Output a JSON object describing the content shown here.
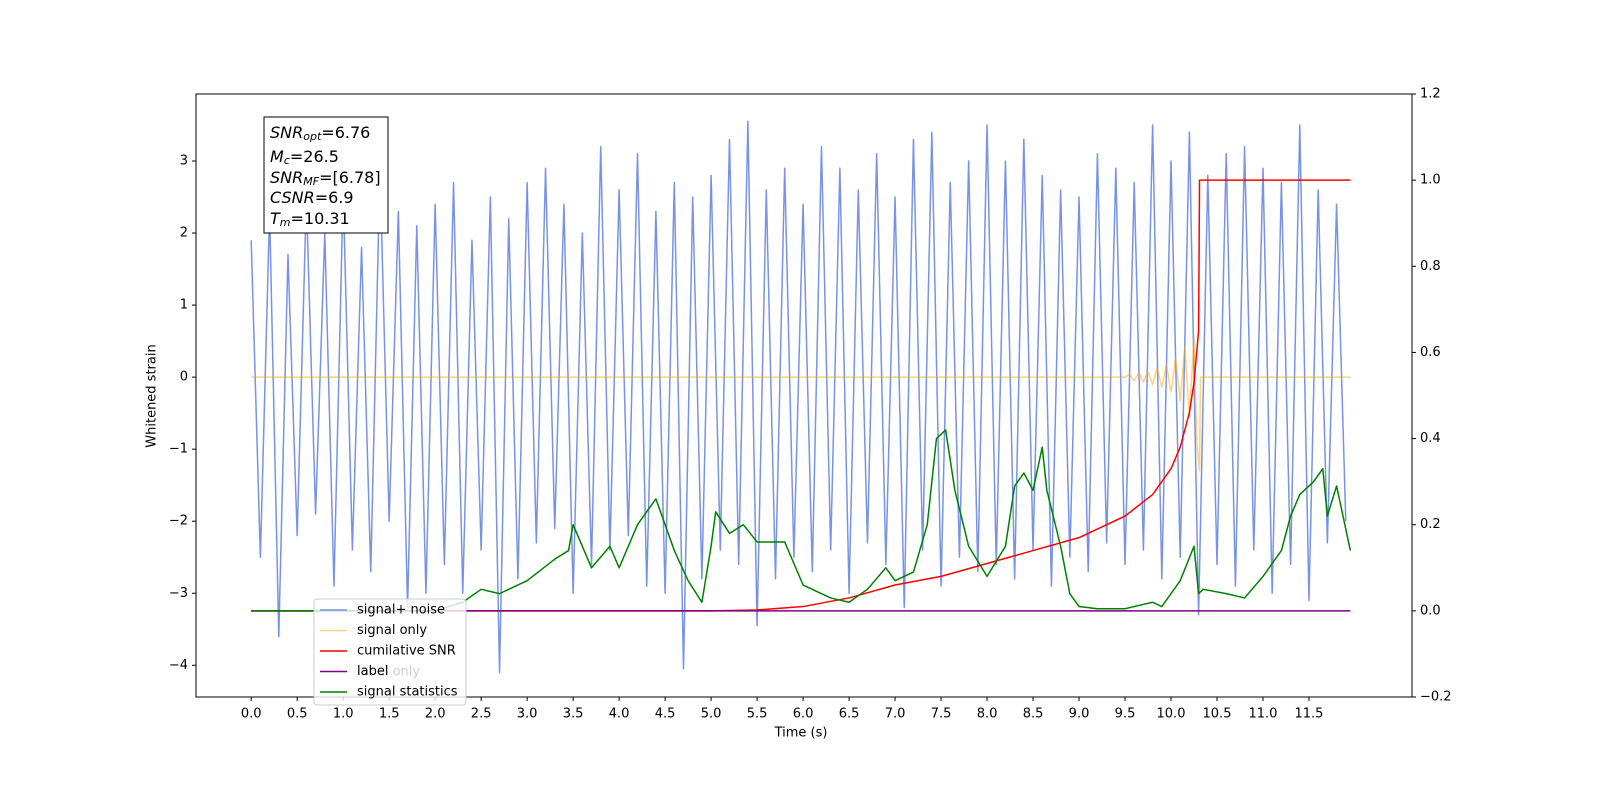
{
  "chart_data": {
    "type": "line",
    "xlabel": "Time (s)",
    "ylabel": "Whitened strain",
    "xlim": [
      -0.6,
      12.62
    ],
    "ylim": [
      -4.44,
      3.93
    ],
    "y2lim": [
      -0.2,
      1.2
    ],
    "xticks": [
      {
        "value": 0,
        "label": "0.0"
      },
      0.5,
      {
        "value": 1,
        "label": "1.0"
      },
      1.5,
      {
        "value": 2,
        "label": "2.0"
      },
      2.5,
      {
        "value": 3,
        "label": "3.0"
      },
      3.5,
      {
        "value": 4,
        "label": "4.0"
      },
      4.5,
      {
        "value": 5,
        "label": "5.0"
      },
      5.5,
      {
        "value": 6,
        "label": "6.0"
      },
      6.5,
      {
        "value": 7,
        "label": "7.0"
      },
      7.5,
      {
        "value": 8,
        "label": "8.0"
      },
      8.5,
      {
        "value": 9,
        "label": "9.0"
      },
      9.5,
      {
        "value": 10,
        "label": "10.0"
      },
      10.5,
      {
        "value": 11,
        "label": "11.0"
      },
      11.5
    ],
    "yticks": [
      {
        "value": -4,
        "label": "−4"
      },
      {
        "value": -3,
        "label": "−3"
      },
      {
        "value": -2,
        "label": "−2"
      },
      {
        "value": -1,
        "label": "−1"
      },
      0,
      1,
      2,
      3
    ],
    "y2ticks": [
      {
        "value": -0.2,
        "label": "−0.2"
      },
      {
        "value": 0,
        "label": "0.0"
      },
      0.2,
      0.4,
      0.6,
      0.8,
      {
        "value": 1,
        "label": "1.0"
      },
      1.2
    ],
    "legend": "lower left",
    "textbox": [
      {
        "text": "SNR",
        "sub": "opt",
        "rest": "=6.76"
      },
      {
        "text": "M",
        "sub": "c",
        "rest": "=26.5"
      },
      {
        "text": "SNR",
        "sub": "MF",
        "rest": "=[6.78]"
      },
      {
        "text": "CSNR",
        "rest": "=6.9"
      },
      {
        "text": "T",
        "sub": "m",
        "rest": "=10.31"
      }
    ],
    "annotation": "label only",
    "series": [
      {
        "name": "signal+ noise",
        "color": "#7893e6",
        "opacity": 1,
        "axis": "y",
        "x": [
          0,
          0.1,
          0.2,
          0.3,
          0.4,
          0.5,
          0.6,
          0.7,
          0.8,
          0.9,
          1,
          1.1,
          1.2,
          1.3,
          1.4,
          1.5,
          1.6,
          1.7,
          1.8,
          1.9,
          2,
          2.1,
          2.2,
          2.3,
          2.4,
          2.5,
          2.6,
          2.7,
          2.8,
          2.9,
          3,
          3.1,
          3.2,
          3.3,
          3.4,
          3.5,
          3.6,
          3.7,
          3.8,
          3.9,
          4,
          4.1,
          4.2,
          4.3,
          4.4,
          4.5,
          4.6,
          4.7,
          4.8,
          4.9,
          5,
          5.1,
          5.2,
          5.3,
          5.4,
          5.5,
          5.6,
          5.7,
          5.8,
          5.9,
          6,
          6.1,
          6.2,
          6.3,
          6.4,
          6.5,
          6.6,
          6.7,
          6.8,
          6.9,
          7,
          7.1,
          7.2,
          7.3,
          7.4,
          7.5,
          7.6,
          7.7,
          7.8,
          7.9,
          8,
          8.1,
          8.2,
          8.3,
          8.4,
          8.5,
          8.6,
          8.7,
          8.8,
          8.9,
          9,
          9.1,
          9.2,
          9.3,
          9.4,
          9.5,
          9.6,
          9.7,
          9.8,
          9.9,
          10,
          10.1,
          10.2,
          10.3,
          10.4,
          10.5,
          10.6,
          10.7,
          10.8,
          10.9,
          11,
          11.1,
          11.2,
          11.3,
          11.4,
          11.5,
          11.6,
          11.7,
          11.8,
          11.9
        ],
        "values": [
          1.9,
          -2.5,
          2.3,
          -3.6,
          1.7,
          -2.2,
          2.5,
          -1.9,
          2.0,
          -2.9,
          2.6,
          -2.4,
          1.8,
          -2.7,
          2.9,
          -2.0,
          2.3,
          -3.2,
          2.1,
          -3.0,
          2.4,
          -2.6,
          2.7,
          -3.0,
          1.9,
          -2.4,
          2.5,
          -4.1,
          2.2,
          -2.8,
          2.7,
          -2.3,
          2.9,
          -2.1,
          2.4,
          -3.0,
          2.0,
          -2.6,
          3.2,
          -2.4,
          2.6,
          -2.2,
          3.1,
          -2.9,
          2.3,
          -3.0,
          2.7,
          -4.05,
          2.5,
          -2.8,
          2.8,
          -2.4,
          3.3,
          -2.6,
          3.55,
          -3.45,
          2.6,
          -2.8,
          2.9,
          -2.5,
          2.4,
          -2.7,
          3.2,
          -2.4,
          2.9,
          -3.0,
          2.6,
          -2.3,
          3.1,
          -2.6,
          2.5,
          -3.2,
          3.3,
          -2.4,
          3.4,
          -2.9,
          2.7,
          -2.5,
          3.0,
          -2.7,
          3.5,
          -2.6,
          3.0,
          -2.8,
          3.3,
          -2.4,
          2.8,
          -2.9,
          2.6,
          -2.5,
          2.5,
          -2.7,
          3.1,
          -2.3,
          2.9,
          -2.6,
          2.7,
          -2.4,
          3.5,
          -2.8,
          3.0,
          -2.5,
          3.4,
          -3.3,
          2.8,
          -2.6,
          3.1,
          -2.9,
          3.2,
          -2.4,
          2.9,
          -3.0,
          2.7,
          -2.6,
          3.5,
          -3.1,
          2.6,
          -2.3,
          2.4,
          -2.0
        ]
      },
      {
        "name": "signal only",
        "color": "#ffa500",
        "opacity": 0.5,
        "axis": "y",
        "x": [
          0,
          9.5,
          9.55,
          9.6,
          9.65,
          9.7,
          9.75,
          9.8,
          9.85,
          9.9,
          9.95,
          10.0,
          10.05,
          10.1,
          10.15,
          10.2,
          10.25,
          10.28,
          10.31,
          10.32,
          11.95
        ],
        "values": [
          0,
          0,
          0.04,
          -0.05,
          0.06,
          -0.07,
          0.08,
          -0.1,
          0.12,
          -0.14,
          0.17,
          -0.21,
          0.26,
          -0.33,
          0.42,
          -0.55,
          0.55,
          -0.9,
          -1.3,
          0,
          0
        ]
      },
      {
        "name": "cumilative SNR",
        "color": "#ff0000",
        "opacity": 1,
        "axis": "y2",
        "x": [
          0,
          5.0,
          5.5,
          6.0,
          6.5,
          7.0,
          7.5,
          8.0,
          8.5,
          9.0,
          9.5,
          9.8,
          10.0,
          10.1,
          10.2,
          10.25,
          10.3,
          10.31,
          11.95
        ],
        "values": [
          0,
          0,
          0.002,
          0.01,
          0.03,
          0.06,
          0.08,
          0.11,
          0.14,
          0.17,
          0.22,
          0.27,
          0.33,
          0.38,
          0.46,
          0.53,
          0.65,
          1.0,
          1.0
        ]
      },
      {
        "name": "label",
        "color": "#800080",
        "opacity": 1,
        "axis": "y2",
        "x": [
          0,
          11.95
        ],
        "values": [
          0,
          0
        ]
      },
      {
        "name": "signal statistics",
        "color": "#008000",
        "opacity": 1,
        "axis": "y2",
        "x": [
          0,
          2.0,
          2.3,
          2.5,
          2.7,
          3.0,
          3.3,
          3.45,
          3.5,
          3.7,
          3.9,
          4.0,
          4.2,
          4.4,
          4.6,
          4.75,
          4.9,
          5.0,
          5.05,
          5.2,
          5.35,
          5.5,
          5.8,
          6.0,
          6.3,
          6.5,
          6.7,
          6.9,
          7.0,
          7.2,
          7.35,
          7.45,
          7.55,
          7.65,
          7.8,
          8.0,
          8.2,
          8.3,
          8.4,
          8.5,
          8.6,
          8.65,
          8.8,
          8.9,
          9.0,
          9.2,
          9.5,
          9.8,
          9.9,
          10.1,
          10.25,
          10.3,
          10.35,
          10.6,
          10.8,
          11.0,
          11.2,
          11.3,
          11.4,
          11.55,
          11.65,
          11.7,
          11.8,
          11.95
        ],
        "values": [
          0,
          0,
          0.02,
          0.05,
          0.04,
          0.07,
          0.12,
          0.14,
          0.2,
          0.1,
          0.15,
          0.1,
          0.2,
          0.26,
          0.14,
          0.07,
          0.02,
          0.15,
          0.23,
          0.18,
          0.2,
          0.16,
          0.16,
          0.06,
          0.03,
          0.02,
          0.05,
          0.1,
          0.07,
          0.09,
          0.2,
          0.4,
          0.42,
          0.28,
          0.15,
          0.08,
          0.15,
          0.29,
          0.32,
          0.28,
          0.38,
          0.28,
          0.15,
          0.04,
          0.01,
          0.005,
          0.005,
          0.02,
          0.01,
          0.07,
          0.15,
          0.04,
          0.05,
          0.04,
          0.03,
          0.08,
          0.14,
          0.22,
          0.27,
          0.3,
          0.33,
          0.22,
          0.29,
          0.14
        ]
      }
    ]
  }
}
